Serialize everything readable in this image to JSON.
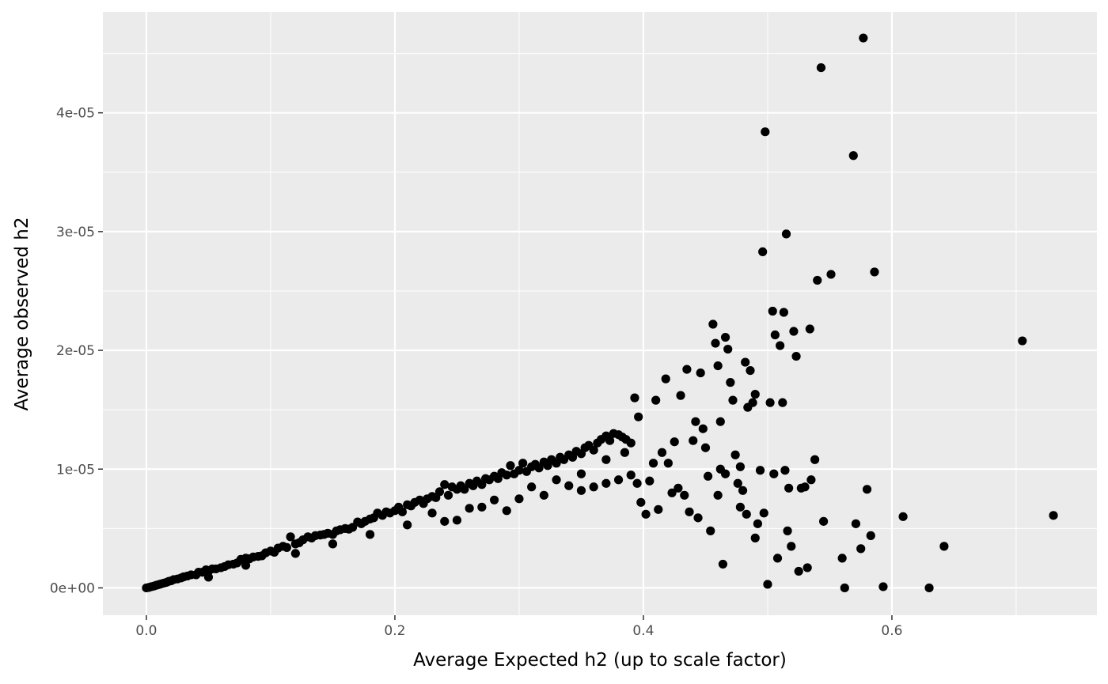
{
  "chart_data": {
    "type": "scatter",
    "title": "",
    "xlabel": "Average Expected h2 (up to scale factor)",
    "ylabel": "Average observed h2",
    "xlim": [
      -0.035,
      0.765
    ],
    "ylim": [
      -2.3e-06,
      4.85e-05
    ],
    "x_ticks": [
      0.0,
      0.2,
      0.4,
      0.6
    ],
    "x_tick_labels": [
      "0.0",
      "0.2",
      "0.4",
      "0.6"
    ],
    "y_ticks": [
      0,
      1e-05,
      2e-05,
      3e-05,
      4e-05
    ],
    "y_tick_labels": [
      "0e+00",
      "1e-05",
      "2e-05",
      "3e-05",
      "4e-05"
    ],
    "grid": true,
    "legend": "none",
    "colors": {
      "panel": "#ebebeb",
      "grid": "#ffffff",
      "point": "#000000",
      "tick_text": "#4d4d4d",
      "axis_title": "#000000"
    },
    "points": [
      [
        0.0,
        0.0
      ],
      [
        0.002,
        4e-08
      ],
      [
        0.004,
        1e-07
      ],
      [
        0.006,
        1.5e-07
      ],
      [
        0.008,
        2.2e-07
      ],
      [
        0.01,
        2.8e-07
      ],
      [
        0.012,
        3.4e-07
      ],
      [
        0.014,
        4e-07
      ],
      [
        0.016,
        4.6e-07
      ],
      [
        0.018,
        5.5e-07
      ],
      [
        0.02,
        6e-07
      ],
      [
        0.022,
        7e-07
      ],
      [
        0.025,
        7.5e-07
      ],
      [
        0.028,
        8.4e-07
      ],
      [
        0.03,
        9.3e-07
      ],
      [
        0.033,
        1e-06
      ],
      [
        0.036,
        1.1e-06
      ],
      [
        0.04,
        1.1e-06
      ],
      [
        0.042,
        1.32e-06
      ],
      [
        0.045,
        1.32e-06
      ],
      [
        0.048,
        1.52e-06
      ],
      [
        0.05,
        1.4e-06
      ],
      [
        0.053,
        1.6e-06
      ],
      [
        0.056,
        1.6e-06
      ],
      [
        0.06,
        1.7e-06
      ],
      [
        0.063,
        1.8e-06
      ],
      [
        0.066,
        1.95e-06
      ],
      [
        0.07,
        2e-06
      ],
      [
        0.073,
        2.1e-06
      ],
      [
        0.076,
        2.4e-06
      ],
      [
        0.08,
        2.5e-06
      ],
      [
        0.083,
        2.45e-06
      ],
      [
        0.086,
        2.6e-06
      ],
      [
        0.09,
        2.65e-06
      ],
      [
        0.093,
        2.7e-06
      ],
      [
        0.096,
        2.95e-06
      ],
      [
        0.1,
        3.1e-06
      ],
      [
        0.103,
        3e-06
      ],
      [
        0.106,
        3.35e-06
      ],
      [
        0.11,
        3.5e-06
      ],
      [
        0.113,
        3.4e-06
      ],
      [
        0.116,
        4.3e-06
      ],
      [
        0.12,
        3.7e-06
      ],
      [
        0.123,
        3.8e-06
      ],
      [
        0.126,
        4.05e-06
      ],
      [
        0.13,
        4.3e-06
      ],
      [
        0.133,
        4.2e-06
      ],
      [
        0.136,
        4.4e-06
      ],
      [
        0.14,
        4.45e-06
      ],
      [
        0.143,
        4.5e-06
      ],
      [
        0.146,
        4.6e-06
      ],
      [
        0.15,
        4.5e-06
      ],
      [
        0.153,
        4.8e-06
      ],
      [
        0.156,
        4.9e-06
      ],
      [
        0.16,
        5e-06
      ],
      [
        0.163,
        4.95e-06
      ],
      [
        0.166,
        5.1e-06
      ],
      [
        0.17,
        5.55e-06
      ],
      [
        0.173,
        5.4e-06
      ],
      [
        0.176,
        5.6e-06
      ],
      [
        0.18,
        5.8e-06
      ],
      [
        0.183,
        5.9e-06
      ],
      [
        0.186,
        6.3e-06
      ],
      [
        0.19,
        6.1e-06
      ],
      [
        0.193,
        6.4e-06
      ],
      [
        0.196,
        6.3e-06
      ],
      [
        0.2,
        6.5e-06
      ],
      [
        0.203,
        6.8e-06
      ],
      [
        0.206,
        6.4e-06
      ],
      [
        0.21,
        7e-06
      ],
      [
        0.213,
        6.9e-06
      ],
      [
        0.216,
        7.2e-06
      ],
      [
        0.22,
        7.4e-06
      ],
      [
        0.223,
        7.1e-06
      ],
      [
        0.226,
        7.5e-06
      ],
      [
        0.23,
        7.7e-06
      ],
      [
        0.233,
        7.6e-06
      ],
      [
        0.236,
        8.1e-06
      ],
      [
        0.24,
        8.7e-06
      ],
      [
        0.243,
        7.8e-06
      ],
      [
        0.246,
        8.5e-06
      ],
      [
        0.25,
        8.3e-06
      ],
      [
        0.253,
        8.6e-06
      ],
      [
        0.256,
        8.3e-06
      ],
      [
        0.26,
        8.8e-06
      ],
      [
        0.263,
        8.6e-06
      ],
      [
        0.266,
        9e-06
      ],
      [
        0.27,
        8.7e-06
      ],
      [
        0.273,
        9.2e-06
      ],
      [
        0.276,
        9.1e-06
      ],
      [
        0.28,
        9.4e-06
      ],
      [
        0.283,
        9.2e-06
      ],
      [
        0.286,
        9.7e-06
      ],
      [
        0.29,
        9.5e-06
      ],
      [
        0.293,
        1.03e-05
      ],
      [
        0.296,
        9.6e-06
      ],
      [
        0.3,
        9.9e-06
      ],
      [
        0.303,
        1.05e-05
      ],
      [
        0.306,
        9.8e-06
      ],
      [
        0.31,
        1.02e-05
      ],
      [
        0.313,
        1.04e-05
      ],
      [
        0.316,
        1.01e-05
      ],
      [
        0.32,
        1.06e-05
      ],
      [
        0.323,
        1.03e-05
      ],
      [
        0.326,
        1.08e-05
      ],
      [
        0.33,
        1.05e-05
      ],
      [
        0.333,
        1.1e-05
      ],
      [
        0.336,
        1.08e-05
      ],
      [
        0.34,
        1.12e-05
      ],
      [
        0.343,
        1.1e-05
      ],
      [
        0.346,
        1.15e-05
      ],
      [
        0.35,
        1.13e-05
      ],
      [
        0.353,
        1.18e-05
      ],
      [
        0.356,
        1.2e-05
      ],
      [
        0.36,
        1.16e-05
      ],
      [
        0.363,
        1.22e-05
      ],
      [
        0.366,
        1.25e-05
      ],
      [
        0.37,
        1.28e-05
      ],
      [
        0.373,
        1.24e-05
      ],
      [
        0.376,
        1.3e-05
      ],
      [
        0.38,
        1.29e-05
      ],
      [
        0.383,
        1.27e-05
      ],
      [
        0.386,
        1.25e-05
      ],
      [
        0.39,
        1.22e-05
      ],
      [
        0.393,
        1.6e-05
      ],
      [
        0.396,
        1.44e-05
      ],
      [
        0.05,
        9e-07
      ],
      [
        0.08,
        1.9e-06
      ],
      [
        0.12,
        2.9e-06
      ],
      [
        0.15,
        3.7e-06
      ],
      [
        0.18,
        4.5e-06
      ],
      [
        0.21,
        5.3e-06
      ],
      [
        0.24,
        5.6e-06
      ],
      [
        0.25,
        5.7e-06
      ],
      [
        0.27,
        6.8e-06
      ],
      [
        0.29,
        6.5e-06
      ],
      [
        0.3,
        7.5e-06
      ],
      [
        0.32,
        7.8e-06
      ],
      [
        0.34,
        8.6e-06
      ],
      [
        0.35,
        8.2e-06
      ],
      [
        0.36,
        8.5e-06
      ],
      [
        0.37,
        8.8e-06
      ],
      [
        0.38,
        9.1e-06
      ],
      [
        0.39,
        9.5e-06
      ],
      [
        0.23,
        6.3e-06
      ],
      [
        0.26,
        6.7e-06
      ],
      [
        0.28,
        7.4e-06
      ],
      [
        0.31,
        8.5e-06
      ],
      [
        0.33,
        9.1e-06
      ],
      [
        0.35,
        9.6e-06
      ],
      [
        0.37,
        1.08e-05
      ],
      [
        0.385,
        1.14e-05
      ],
      [
        0.395,
        8.8e-06
      ],
      [
        0.398,
        7.2e-06
      ],
      [
        0.402,
        6.2e-06
      ],
      [
        0.405,
        9e-06
      ],
      [
        0.408,
        1.05e-05
      ],
      [
        0.41,
        1.58e-05
      ],
      [
        0.412,
        6.6e-06
      ],
      [
        0.415,
        1.14e-05
      ],
      [
        0.418,
        1.76e-05
      ],
      [
        0.42,
        1.05e-05
      ],
      [
        0.423,
        8e-06
      ],
      [
        0.425,
        1.23e-05
      ],
      [
        0.428,
        8.4e-06
      ],
      [
        0.43,
        1.62e-05
      ],
      [
        0.433,
        7.8e-06
      ],
      [
        0.435,
        1.84e-05
      ],
      [
        0.437,
        6.4e-06
      ],
      [
        0.44,
        1.24e-05
      ],
      [
        0.442,
        1.4e-05
      ],
      [
        0.444,
        5.9e-06
      ],
      [
        0.446,
        1.81e-05
      ],
      [
        0.448,
        1.34e-05
      ],
      [
        0.45,
        1.18e-05
      ],
      [
        0.452,
        9.4e-06
      ],
      [
        0.454,
        4.8e-06
      ],
      [
        0.456,
        2.22e-05
      ],
      [
        0.458,
        2.06e-05
      ],
      [
        0.46,
        1.87e-05
      ],
      [
        0.462,
        1.4e-05
      ],
      [
        0.464,
        2e-06
      ],
      [
        0.466,
        2.11e-05
      ],
      [
        0.468,
        2.01e-05
      ],
      [
        0.47,
        1.73e-05
      ],
      [
        0.472,
        1.58e-05
      ],
      [
        0.474,
        1.12e-05
      ],
      [
        0.476,
        8.8e-06
      ],
      [
        0.478,
        6.8e-06
      ],
      [
        0.48,
        8.2e-06
      ],
      [
        0.482,
        1.9e-05
      ],
      [
        0.484,
        1.52e-05
      ],
      [
        0.486,
        1.83e-05
      ],
      [
        0.488,
        1.56e-05
      ],
      [
        0.49,
        1.63e-05
      ],
      [
        0.492,
        5.4e-06
      ],
      [
        0.494,
        9.9e-06
      ],
      [
        0.496,
        2.83e-05
      ],
      [
        0.498,
        3.84e-05
      ],
      [
        0.5,
        3e-07
      ],
      [
        0.502,
        1.56e-05
      ],
      [
        0.504,
        2.33e-05
      ],
      [
        0.506,
        2.13e-05
      ],
      [
        0.508,
        2.5e-06
      ],
      [
        0.51,
        2.04e-05
      ],
      [
        0.512,
        1.56e-05
      ],
      [
        0.513,
        2.32e-05
      ],
      [
        0.515,
        2.98e-05
      ],
      [
        0.517,
        8.4e-06
      ],
      [
        0.519,
        3.5e-06
      ],
      [
        0.521,
        2.16e-05
      ],
      [
        0.523,
        1.95e-05
      ],
      [
        0.525,
        1.4e-06
      ],
      [
        0.53,
        8.5e-06
      ],
      [
        0.532,
        1.7e-06
      ],
      [
        0.534,
        2.18e-05
      ],
      [
        0.538,
        1.08e-05
      ],
      [
        0.54,
        2.59e-05
      ],
      [
        0.543,
        4.38e-05
      ],
      [
        0.545,
        5.6e-06
      ],
      [
        0.551,
        2.64e-05
      ],
      [
        0.56,
        2.5e-06
      ],
      [
        0.562,
        0.0
      ],
      [
        0.569,
        3.64e-05
      ],
      [
        0.571,
        5.4e-06
      ],
      [
        0.575,
        3.3e-06
      ],
      [
        0.577,
        4.63e-05
      ],
      [
        0.58,
        8.3e-06
      ],
      [
        0.583,
        4.4e-06
      ],
      [
        0.586,
        2.66e-05
      ],
      [
        0.593,
        1e-07
      ],
      [
        0.609,
        6e-06
      ],
      [
        0.63,
        0.0
      ],
      [
        0.642,
        3.5e-06
      ],
      [
        0.705,
        2.08e-05
      ],
      [
        0.73,
        6.1e-06
      ],
      [
        0.478,
        1.02e-05
      ],
      [
        0.466,
        9.6e-06
      ],
      [
        0.462,
        1e-05
      ],
      [
        0.505,
        9.6e-06
      ],
      [
        0.514,
        9.9e-06
      ],
      [
        0.535,
        9.1e-06
      ],
      [
        0.49,
        4.2e-06
      ],
      [
        0.483,
        6.2e-06
      ],
      [
        0.497,
        6.3e-06
      ],
      [
        0.516,
        4.8e-06
      ],
      [
        0.527,
        8.4e-06
      ],
      [
        0.46,
        7.8e-06
      ]
    ]
  }
}
